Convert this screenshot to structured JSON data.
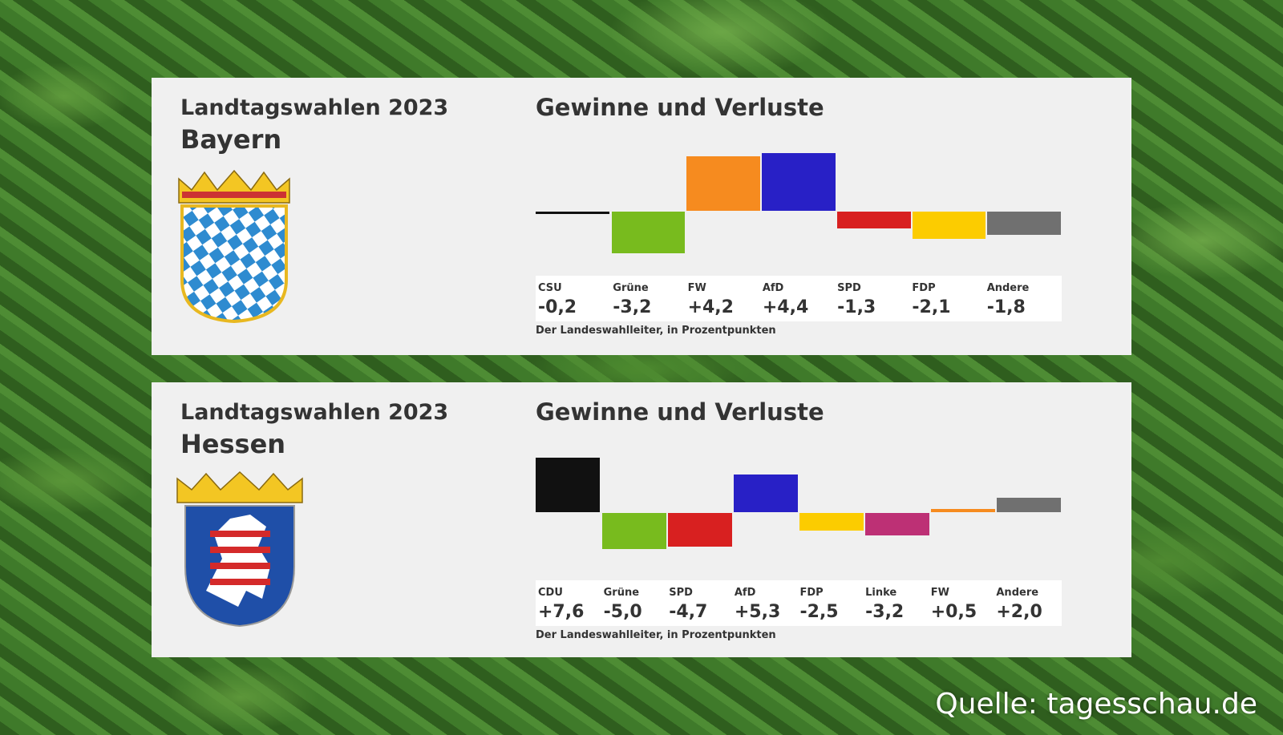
{
  "panels": [
    {
      "title": "Landtagswahlen 2023",
      "state": "Bayern",
      "chart_title": "Gewinne und Verluste",
      "source": "Der Landeswahlleiter, in Prozentpunkten"
    },
    {
      "title": "Landtagswahlen 2023",
      "state": "Hessen",
      "chart_title": "Gewinne und Verluste",
      "source": "Der Landeswahlleiter, in Prozentpunkten"
    }
  ],
  "footer": {
    "credit": "Quelle: tagesschau.de"
  },
  "chart_data": [
    {
      "type": "bar",
      "title": "Gewinne und Verluste",
      "subtitle": "Bayern",
      "ylabel": "Prozentpunkte",
      "categories": [
        "CSU",
        "Grüne",
        "FW",
        "AfD",
        "SPD",
        "FDP",
        "Andere"
      ],
      "values": [
        -0.2,
        -3.2,
        4.2,
        4.4,
        -1.3,
        -2.1,
        -1.8
      ],
      "labels": [
        "-0,2",
        "-3,2",
        "+4,2",
        "+4,4",
        "-1,3",
        "-2,1",
        "-1,8"
      ],
      "colors": [
        "#111111",
        "#78bb1e",
        "#f68b1f",
        "#2820c6",
        "#d82020",
        "#fccc00",
        "#707070"
      ]
    },
    {
      "type": "bar",
      "title": "Gewinne und Verluste",
      "subtitle": "Hessen",
      "ylabel": "Prozentpunkte",
      "categories": [
        "CDU",
        "Grüne",
        "SPD",
        "AfD",
        "FDP",
        "Linke",
        "FW",
        "Andere"
      ],
      "values": [
        7.6,
        -5.0,
        -4.7,
        5.3,
        -2.5,
        -3.2,
        0.5,
        2.0
      ],
      "labels": [
        "+7,6",
        "-5,0",
        "-4,7",
        "+5,3",
        "-2,5",
        "-3,2",
        "+0,5",
        "+2,0"
      ],
      "colors": [
        "#111111",
        "#78bb1e",
        "#d82020",
        "#2820c6",
        "#fccc00",
        "#bd3075",
        "#f68b1f",
        "#707070"
      ]
    }
  ]
}
